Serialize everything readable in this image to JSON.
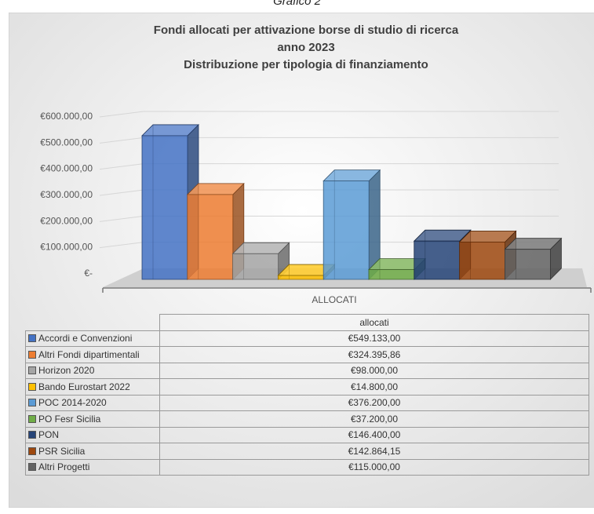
{
  "caption": "Grafico 2",
  "chart_data": {
    "type": "bar",
    "title": "Fondi allocati per attivazione borse di studio di ricerca",
    "title_line2": "anno 2023",
    "subtitle": "Distribuzione per tipologia di finanziamento",
    "category_axis_label": "ALLOCATI",
    "table_header": "allocati",
    "ylim": [
      0,
      600000
    ],
    "y_tick_labels": [
      "€-",
      "€100.000,00",
      "€200.000,00",
      "€300.000,00",
      "€400.000,00",
      "€500.000,00",
      "€600.000,00"
    ],
    "grid": true,
    "legend": "data table below chart",
    "series": [
      {
        "name": "Accordi e Convenzioni",
        "value": 549133.0,
        "label": "€549.133,00",
        "color": "#4472c4"
      },
      {
        "name": "Altri Fondi dipartimentali",
        "value": 324395.86,
        "label": "€324.395,86",
        "color": "#ed7d31"
      },
      {
        "name": "Horizon 2020",
        "value": 98000.0,
        "label": "€98.000,00",
        "color": "#a5a5a5"
      },
      {
        "name": "Bando Eurostart 2022",
        "value": 14800.0,
        "label": "€14.800,00",
        "color": "#ffc000"
      },
      {
        "name": "POC 2014-2020",
        "value": 376200.0,
        "label": "€376.200,00",
        "color": "#5b9bd5"
      },
      {
        "name": "PO Fesr Sicilia",
        "value": 37200.0,
        "label": "€37.200,00",
        "color": "#70ad47"
      },
      {
        "name": "PON",
        "value": 146400.0,
        "label": "€146.400,00",
        "color": "#264478"
      },
      {
        "name": "PSR Sicilia",
        "value": 142864.15,
        "label": "€142.864,15",
        "color": "#9e480e"
      },
      {
        "name": "Altri Progetti",
        "value": 115000.0,
        "label": "€115.000,00",
        "color": "#636363"
      }
    ]
  }
}
